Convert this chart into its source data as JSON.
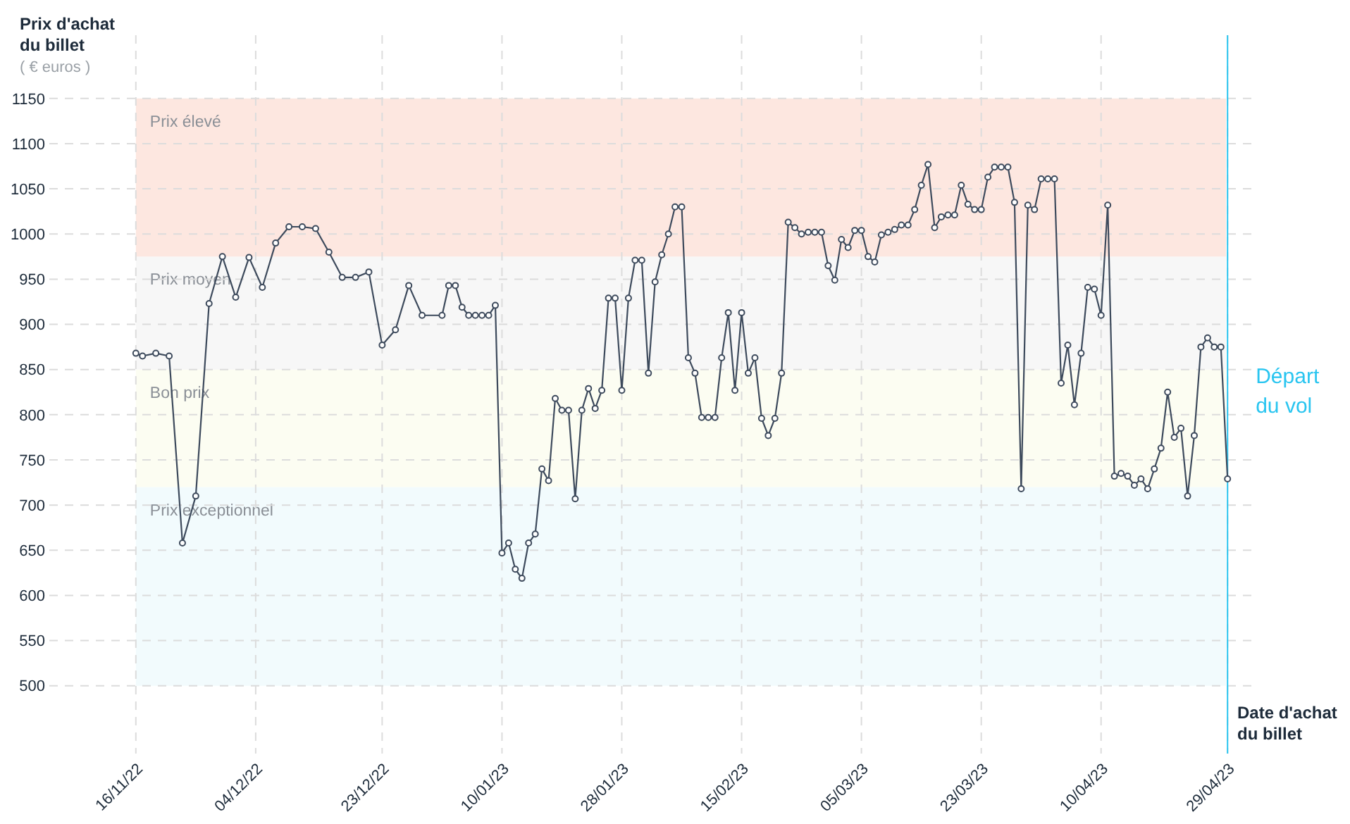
{
  "chart_data": {
    "type": "line",
    "xlabel": "Date d'achat du billet",
    "ylabel": "Prix d'achat du billet",
    "annotations": [
      "( € euros )"
    ],
    "xlim": [
      "2022-11-03",
      "2023-05-03"
    ],
    "ylim": [
      425,
      1220
    ],
    "xticks": [
      {
        "value": "2022-11-16",
        "label": "16/11/22"
      },
      {
        "value": "2022-12-04",
        "label": "04/12/22"
      },
      {
        "value": "2022-12-23",
        "label": "23/12/22"
      },
      {
        "value": "2023-01-10",
        "label": "10/01/23"
      },
      {
        "value": "2023-01-28",
        "label": "28/01/23"
      },
      {
        "value": "2023-02-15",
        "label": "15/02/23"
      },
      {
        "value": "2023-03-05",
        "label": "05/03/23"
      },
      {
        "value": "2023-03-23",
        "label": "23/03/23"
      },
      {
        "value": "2023-04-10",
        "label": "10/04/23"
      },
      {
        "value": "2023-04-29",
        "label": "29/04/23"
      }
    ],
    "yticks": [
      500,
      550,
      600,
      650,
      700,
      750,
      800,
      850,
      900,
      950,
      1000,
      1050,
      1100,
      1150
    ],
    "grid": true,
    "marker": "circle",
    "line_style": "solid",
    "bands": [
      {
        "axis": "y",
        "from": 500,
        "to": 720,
        "label": "Prix exceptionnel",
        "color": "#f2fbfd"
      },
      {
        "axis": "y",
        "from": 720,
        "to": 850,
        "label": "Bon prix",
        "color": "#fcfdf2"
      },
      {
        "axis": "y",
        "from": 850,
        "to": 975,
        "label": "Prix moyen",
        "color": "#f7f7f7"
      },
      {
        "axis": "y",
        "from": 975,
        "to": 1150,
        "label": "Prix élevé",
        "color": "#fde7e0"
      }
    ],
    "ref_lines": [
      {
        "axis": "x",
        "value": "2023-04-29",
        "label": "Départ du vol",
        "color": "#29c5f0"
      }
    ],
    "x": [
      "2022-11-16",
      "2022-11-17",
      "2022-11-19",
      "2022-11-21",
      "2022-11-23",
      "2022-11-25",
      "2022-11-27",
      "2022-11-29",
      "2022-12-01",
      "2022-12-03",
      "2022-12-05",
      "2022-12-07",
      "2022-12-09",
      "2022-12-11",
      "2022-12-13",
      "2022-12-15",
      "2022-12-17",
      "2022-12-19",
      "2022-12-21",
      "2022-12-23",
      "2022-12-25",
      "2022-12-27",
      "2022-12-29",
      "2023-01-01",
      "2023-01-02",
      "2023-01-03",
      "2023-01-04",
      "2023-01-05",
      "2023-01-06",
      "2023-01-07",
      "2023-01-08",
      "2023-01-09",
      "2023-01-10",
      "2023-01-11",
      "2023-01-12",
      "2023-01-13",
      "2023-01-14",
      "2023-01-15",
      "2023-01-16",
      "2023-01-17",
      "2023-01-18",
      "2023-01-19",
      "2023-01-20",
      "2023-01-21",
      "2023-01-22",
      "2023-01-23",
      "2023-01-24",
      "2023-01-25",
      "2023-01-26",
      "2023-01-27",
      "2023-01-28",
      "2023-01-29",
      "2023-01-30",
      "2023-01-31",
      "2023-02-01",
      "2023-02-02",
      "2023-02-03",
      "2023-02-04",
      "2023-02-05",
      "2023-02-06",
      "2023-02-07",
      "2023-02-08",
      "2023-02-09",
      "2023-02-10",
      "2023-02-11",
      "2023-02-12",
      "2023-02-13",
      "2023-02-14",
      "2023-02-15",
      "2023-02-16",
      "2023-02-17",
      "2023-02-18",
      "2023-02-19",
      "2023-02-20",
      "2023-02-21",
      "2023-02-22",
      "2023-02-23",
      "2023-02-24",
      "2023-02-25",
      "2023-02-26",
      "2023-02-27",
      "2023-02-28",
      "2023-03-01",
      "2023-03-02",
      "2023-03-03",
      "2023-03-04",
      "2023-03-05",
      "2023-03-06",
      "2023-03-07",
      "2023-03-08",
      "2023-03-09",
      "2023-03-10",
      "2023-03-11",
      "2023-03-12",
      "2023-03-13",
      "2023-03-14",
      "2023-03-15",
      "2023-03-16",
      "2023-03-17",
      "2023-03-18",
      "2023-03-19",
      "2023-03-20",
      "2023-03-21",
      "2023-03-22",
      "2023-03-23",
      "2023-03-24",
      "2023-03-25",
      "2023-03-26",
      "2023-03-27",
      "2023-03-28",
      "2023-03-29",
      "2023-03-30",
      "2023-03-31",
      "2023-04-01",
      "2023-04-02",
      "2023-04-03",
      "2023-04-04",
      "2023-04-05",
      "2023-04-06",
      "2023-04-07",
      "2023-04-08",
      "2023-04-09",
      "2023-04-10",
      "2023-04-11",
      "2023-04-12",
      "2023-04-13",
      "2023-04-14",
      "2023-04-15",
      "2023-04-16",
      "2023-04-17",
      "2023-04-18",
      "2023-04-19",
      "2023-04-20",
      "2023-04-21",
      "2023-04-22",
      "2023-04-23",
      "2023-04-24",
      "2023-04-25",
      "2023-04-26",
      "2023-04-27",
      "2023-04-28",
      "2023-04-29"
    ],
    "series": [
      {
        "color": "#3d4a5c",
        "values": [
          868,
          865,
          868,
          865,
          658,
          710,
          923,
          975,
          930,
          974,
          941,
          990,
          1008,
          1008,
          1006,
          980,
          952,
          952,
          958,
          877,
          894,
          943,
          910,
          910,
          943,
          943,
          919,
          910,
          910,
          910,
          910,
          921,
          647,
          658,
          629,
          619,
          658,
          668,
          740,
          727,
          818,
          805,
          805,
          707,
          805,
          829,
          807,
          827,
          929,
          929,
          827,
          929,
          971,
          971,
          846,
          947,
          977,
          1000,
          1030,
          1030,
          863,
          846,
          797,
          797,
          797,
          863,
          913,
          827,
          913,
          846,
          863,
          796,
          777,
          796,
          846,
          1013,
          1007,
          1000,
          1002,
          1002,
          1002,
          965,
          949,
          994,
          985,
          1004,
          1004,
          975,
          969,
          999,
          1002,
          1005,
          1010,
          1010,
          1027,
          1054,
          1077,
          1007,
          1019,
          1021,
          1021,
          1054,
          1033,
          1027,
          1027,
          1063,
          1074,
          1074,
          1074,
          1035,
          718,
          1032,
          1027,
          1061,
          1061,
          1061,
          835,
          877,
          811,
          868,
          941,
          939,
          910,
          1032,
          732,
          735,
          732,
          722,
          729,
          718,
          740,
          763,
          825,
          775,
          785,
          710,
          777,
          875,
          885,
          875,
          875,
          729
        ]
      }
    ]
  }
}
